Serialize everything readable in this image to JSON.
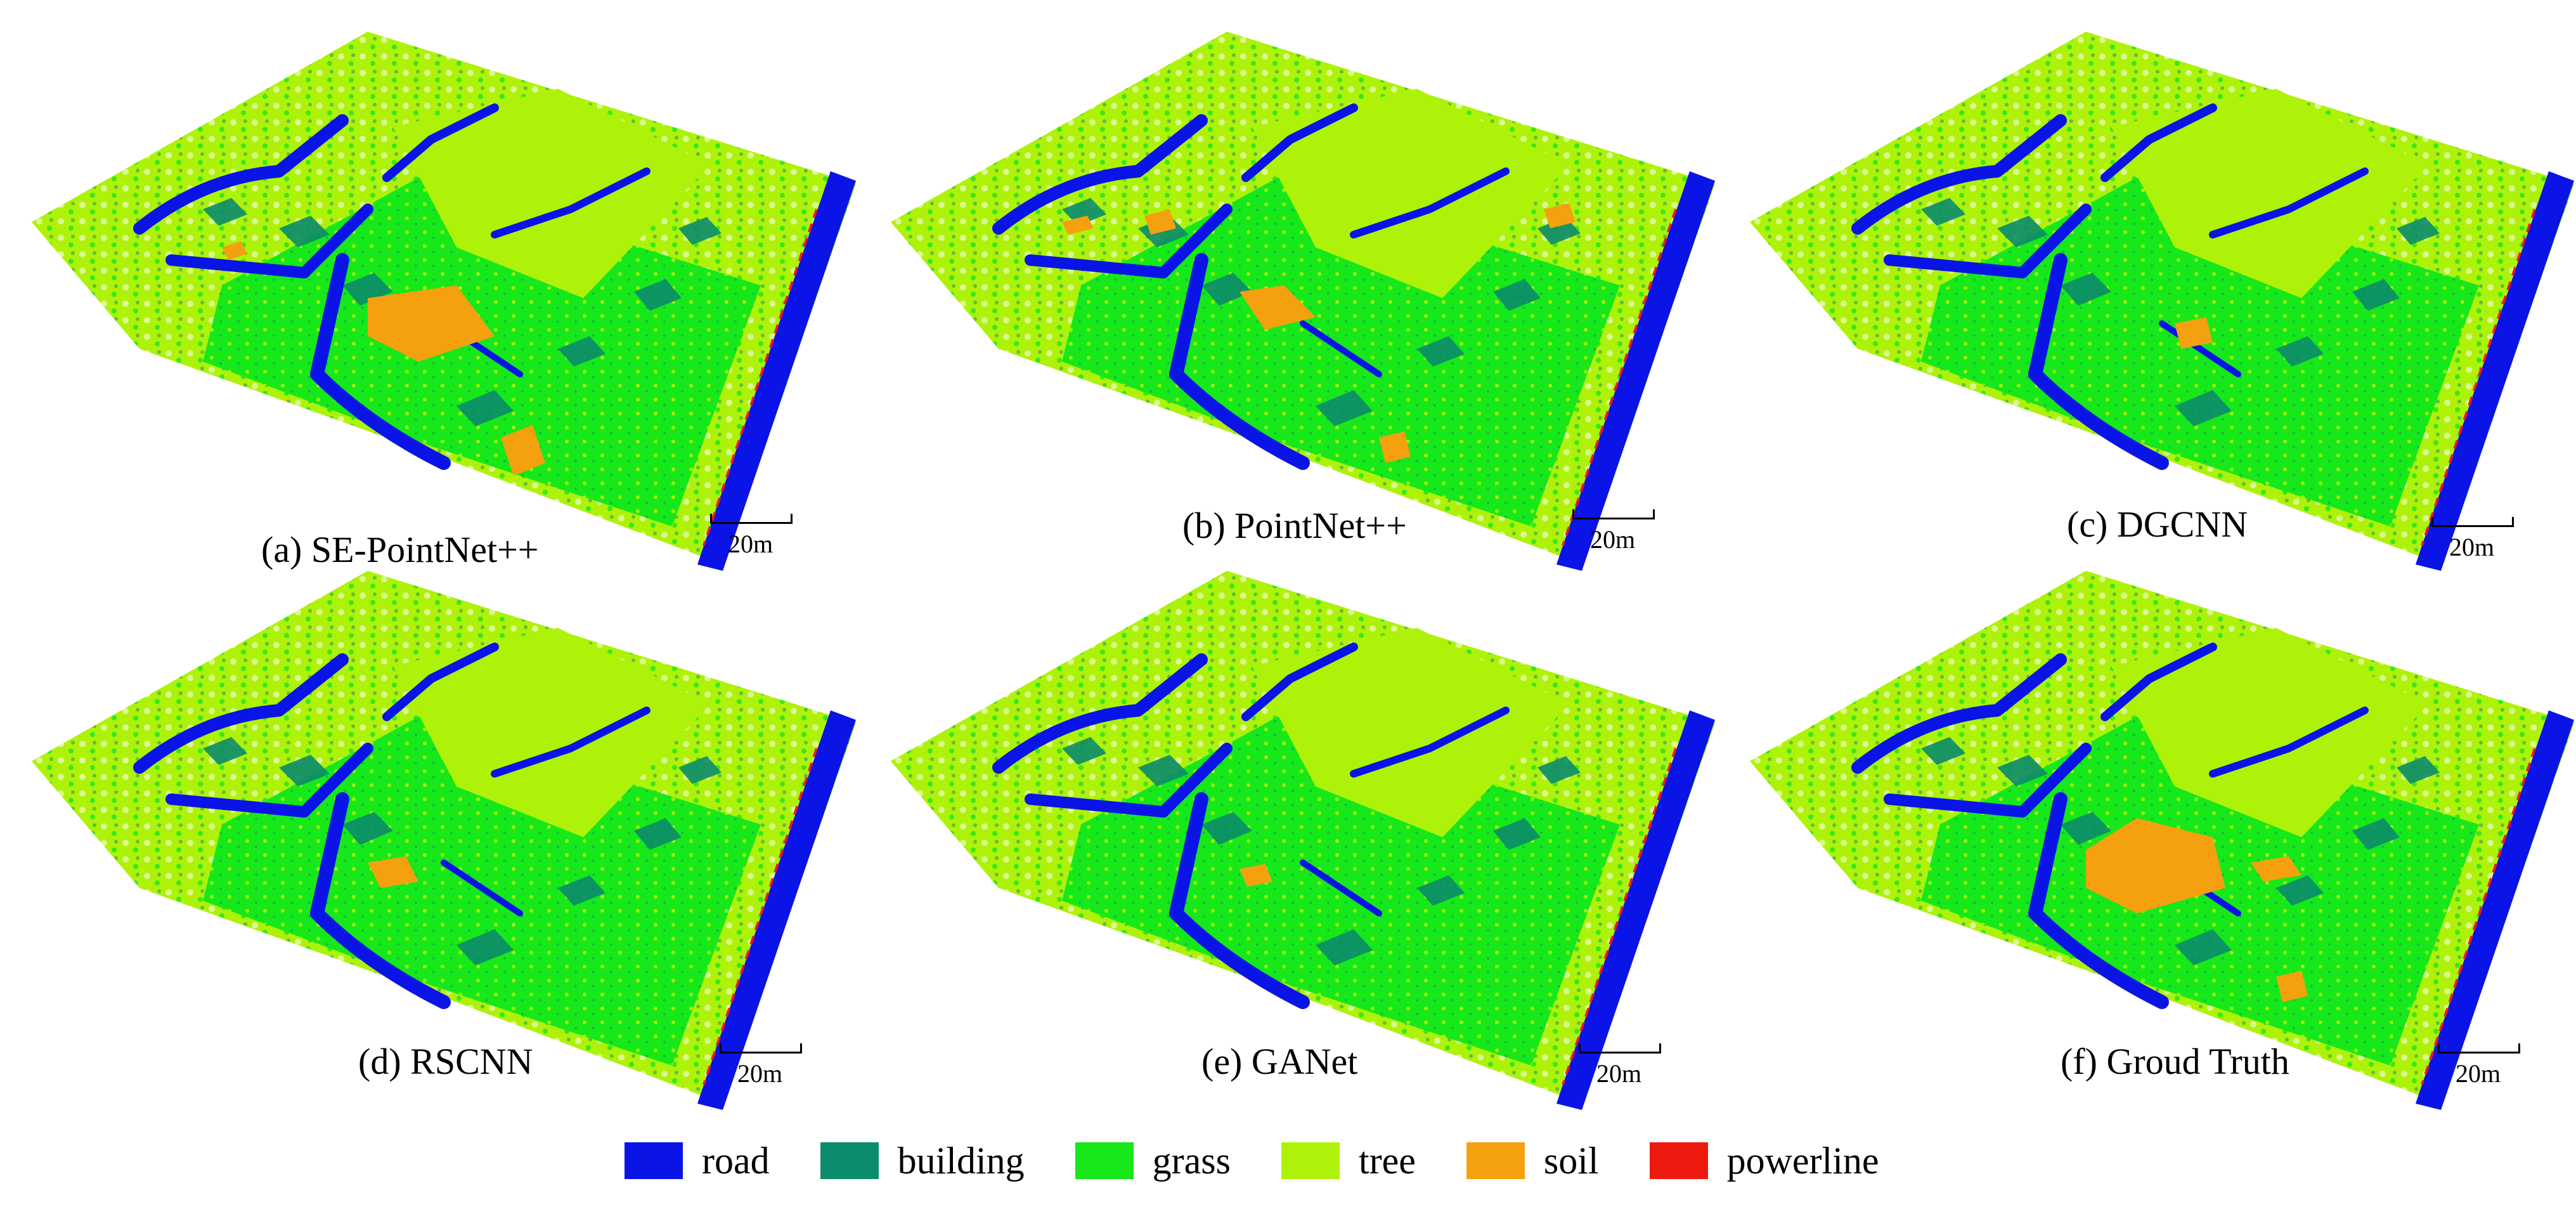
{
  "panels": [
    {
      "caption": "(a) SE-PointNet++",
      "scale_label": "20m",
      "variant": "a"
    },
    {
      "caption": "(b) PointNet++",
      "scale_label": "20m",
      "variant": "b"
    },
    {
      "caption": "(c) DGCNN",
      "scale_label": "20m",
      "variant": "c"
    },
    {
      "caption": "(d) RSCNN",
      "scale_label": "20m",
      "variant": "d"
    },
    {
      "caption": "(e) GANet",
      "scale_label": "20m",
      "variant": "e"
    },
    {
      "caption": "(f) Groud Truth",
      "scale_label": "20m",
      "variant": "f"
    }
  ],
  "legend": [
    {
      "label": "road",
      "color": "#0a14e6"
    },
    {
      "label": "building",
      "color": "#0b8c6c"
    },
    {
      "label": "grass",
      "color": "#16e81a"
    },
    {
      "label": "tree",
      "color": "#aef20a"
    },
    {
      "label": "soil",
      "color": "#f5a00f"
    },
    {
      "label": "powerline",
      "color": "#ee1a10"
    }
  ]
}
